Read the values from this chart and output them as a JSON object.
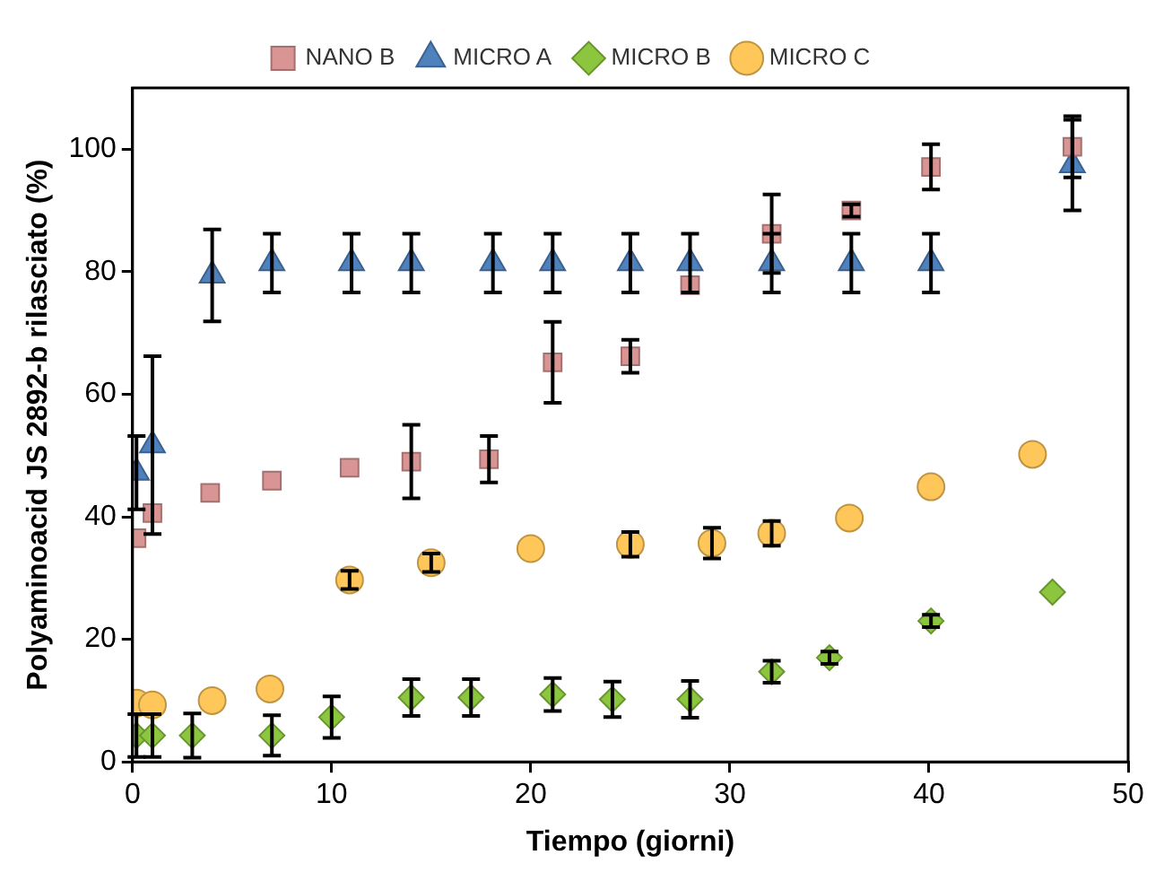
{
  "chart_data": {
    "type": "scatter",
    "xlabel": "Tiempo (giorni)",
    "ylabel": "Polyaminoacid JS 2892-b rilasciato (%)",
    "xlim": [
      0,
      50
    ],
    "xticks": [
      0,
      10,
      20,
      30,
      40,
      50
    ],
    "ylim": [
      0,
      110
    ],
    "yticks": [
      0,
      20,
      40,
      60,
      80,
      100
    ],
    "grid": false,
    "legend": "top",
    "series": [
      {
        "name": "NANO B",
        "color": "#d99594",
        "marker": "square",
        "x": [
          0.2,
          1,
          3.9,
          7,
          10.9,
          14,
          17.9,
          21.1,
          25,
          28,
          32.1,
          36.1,
          40.1,
          47.2
        ],
        "values": [
          36.5,
          40.6,
          43.9,
          45.9,
          48,
          49,
          49.4,
          65.2,
          66.2,
          77.8,
          86.2,
          90,
          97.1,
          100.4
        ],
        "errors": [
          null,
          null,
          null,
          null,
          null,
          6,
          3.8,
          6.6,
          2.7,
          null,
          6.4,
          1,
          3.7,
          5
        ]
      },
      {
        "name": "MICRO A",
        "color": "#4f81bd",
        "marker": "triangle",
        "x": [
          0.2,
          1,
          4,
          7,
          11,
          14,
          18.1,
          21.1,
          25,
          28,
          32.1,
          36.1,
          40.1,
          47.2
        ],
        "values": [
          47.2,
          51.7,
          79.4,
          81.4,
          81.4,
          81.4,
          81.4,
          81.4,
          81.4,
          81.4,
          81.4,
          81.4,
          81.4,
          97.4
        ],
        "errors": [
          6,
          14.5,
          7.5,
          4.8,
          4.8,
          4.8,
          4.8,
          4.8,
          4.8,
          4.8,
          4.8,
          4.8,
          4.8,
          7.4
        ]
      },
      {
        "name": "MICRO B",
        "color": "#8cc63f",
        "marker": "diamond",
        "x": [
          0.2,
          1,
          3,
          7,
          10,
          14,
          17,
          21.1,
          24.1,
          28,
          32.1,
          35,
          40.1,
          46.2
        ],
        "values": [
          4.3,
          4.3,
          4.3,
          4.3,
          7.3,
          10.5,
          10.5,
          11,
          10.2,
          10.2,
          14.7,
          17,
          23,
          27.7
        ],
        "errors": [
          3.5,
          3.5,
          3.6,
          3.3,
          3.4,
          3,
          3,
          2.7,
          2.9,
          3,
          1.8,
          1,
          1,
          null
        ]
      },
      {
        "name": "MICRO C",
        "color": "#ffc65a",
        "marker": "circle",
        "x": [
          0.2,
          1,
          4,
          6.9,
          10.9,
          15,
          20,
          25,
          29.1,
          32.1,
          36,
          40.1,
          45.2
        ],
        "values": [
          9.6,
          9.3,
          10,
          11.9,
          29.7,
          32.5,
          34.8,
          35.5,
          35.7,
          37.3,
          39.8,
          44.9,
          50.2
        ],
        "errors": [
          null,
          null,
          null,
          null,
          1.5,
          1.5,
          null,
          2,
          2.5,
          2,
          null,
          null,
          null
        ]
      }
    ]
  }
}
